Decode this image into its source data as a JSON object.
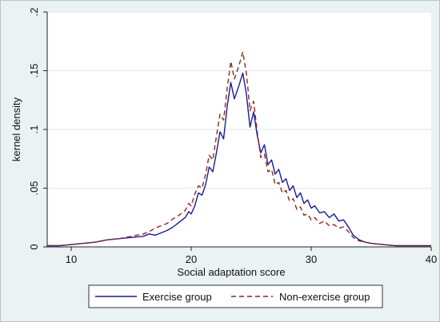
{
  "chart_data": {
    "type": "line",
    "title": "",
    "xlabel": "Social adaptation score",
    "ylabel": "kernel density",
    "xlim": [
      8,
      40
    ],
    "ylim": [
      0,
      0.2
    ],
    "x_ticks": [
      10,
      20,
      30,
      40
    ],
    "x_tick_labels": [
      "10",
      "20",
      "30",
      "40"
    ],
    "y_ticks": [
      0,
      0.05,
      0.1,
      0.15,
      0.2
    ],
    "y_tick_labels": [
      "0",
      ".05",
      ".1",
      ".15",
      ".2"
    ],
    "grid": true,
    "legend_position": "bottom",
    "colors": {
      "exercise": "#1a1a9e",
      "non_exercise": "#8b2a16",
      "grid": "#dfe7ea",
      "plot_background": "#ffffff",
      "figure_background": "#eaf2f3"
    },
    "series": [
      {
        "name": "Exercise group",
        "style": "solid",
        "points": [
          [
            8,
            0.001
          ],
          [
            9,
            0.001
          ],
          [
            10,
            0.002
          ],
          [
            11,
            0.003
          ],
          [
            12,
            0.004
          ],
          [
            13,
            0.006
          ],
          [
            14,
            0.007
          ],
          [
            15,
            0.008
          ],
          [
            16,
            0.009
          ],
          [
            16.5,
            0.011
          ],
          [
            17,
            0.01
          ],
          [
            17.5,
            0.012
          ],
          [
            18,
            0.014
          ],
          [
            18.5,
            0.017
          ],
          [
            19,
            0.021
          ],
          [
            19.5,
            0.025
          ],
          [
            19.8,
            0.03
          ],
          [
            20.0,
            0.028
          ],
          [
            20.3,
            0.035
          ],
          [
            20.6,
            0.046
          ],
          [
            20.9,
            0.044
          ],
          [
            21.2,
            0.053
          ],
          [
            21.5,
            0.068
          ],
          [
            21.8,
            0.064
          ],
          [
            22.1,
            0.08
          ],
          [
            22.4,
            0.098
          ],
          [
            22.7,
            0.092
          ],
          [
            23.0,
            0.12
          ],
          [
            23.3,
            0.14
          ],
          [
            23.6,
            0.126
          ],
          [
            24.0,
            0.138
          ],
          [
            24.3,
            0.148
          ],
          [
            24.6,
            0.13
          ],
          [
            24.9,
            0.102
          ],
          [
            25.2,
            0.115
          ],
          [
            25.5,
            0.095
          ],
          [
            25.8,
            0.08
          ],
          [
            26.1,
            0.087
          ],
          [
            26.4,
            0.07
          ],
          [
            26.7,
            0.074
          ],
          [
            27.0,
            0.062
          ],
          [
            27.3,
            0.066
          ],
          [
            27.6,
            0.055
          ],
          [
            27.9,
            0.058
          ],
          [
            28.2,
            0.048
          ],
          [
            28.5,
            0.052
          ],
          [
            28.8,
            0.042
          ],
          [
            29.1,
            0.046
          ],
          [
            29.4,
            0.037
          ],
          [
            29.7,
            0.04
          ],
          [
            30.0,
            0.033
          ],
          [
            30.3,
            0.035
          ],
          [
            30.7,
            0.029
          ],
          [
            31.1,
            0.03
          ],
          [
            31.5,
            0.025
          ],
          [
            31.9,
            0.028
          ],
          [
            32.3,
            0.022
          ],
          [
            32.7,
            0.023
          ],
          [
            33.1,
            0.017
          ],
          [
            33.5,
            0.01
          ],
          [
            34,
            0.006
          ],
          [
            34.5,
            0.004
          ],
          [
            35,
            0.003
          ],
          [
            36,
            0.002
          ],
          [
            37,
            0.001
          ],
          [
            38,
            0.001
          ],
          [
            39,
            0.001
          ],
          [
            40,
            0.001
          ]
        ]
      },
      {
        "name": "Non-exercise group",
        "style": "dashed",
        "points": [
          [
            8,
            0.001
          ],
          [
            9,
            0.001
          ],
          [
            10,
            0.002
          ],
          [
            11,
            0.003
          ],
          [
            12,
            0.004
          ],
          [
            13,
            0.006
          ],
          [
            14,
            0.007
          ],
          [
            15,
            0.009
          ],
          [
            16,
            0.011
          ],
          [
            16.5,
            0.013
          ],
          [
            17,
            0.016
          ],
          [
            17.5,
            0.018
          ],
          [
            18,
            0.02
          ],
          [
            18.5,
            0.024
          ],
          [
            19,
            0.027
          ],
          [
            19.5,
            0.031
          ],
          [
            19.8,
            0.037
          ],
          [
            20.0,
            0.035
          ],
          [
            20.3,
            0.045
          ],
          [
            20.6,
            0.052
          ],
          [
            20.9,
            0.05
          ],
          [
            21.2,
            0.062
          ],
          [
            21.5,
            0.078
          ],
          [
            21.8,
            0.074
          ],
          [
            22.1,
            0.094
          ],
          [
            22.4,
            0.113
          ],
          [
            22.7,
            0.108
          ],
          [
            23.0,
            0.135
          ],
          [
            23.3,
            0.158
          ],
          [
            23.6,
            0.143
          ],
          [
            24.0,
            0.155
          ],
          [
            24.3,
            0.166
          ],
          [
            24.6,
            0.148
          ],
          [
            24.9,
            0.116
          ],
          [
            25.2,
            0.124
          ],
          [
            25.5,
            0.098
          ],
          [
            25.8,
            0.076
          ],
          [
            26.1,
            0.079
          ],
          [
            26.4,
            0.064
          ],
          [
            26.7,
            0.066
          ],
          [
            27.0,
            0.053
          ],
          [
            27.3,
            0.055
          ],
          [
            27.6,
            0.046
          ],
          [
            27.9,
            0.048
          ],
          [
            28.2,
            0.039
          ],
          [
            28.5,
            0.041
          ],
          [
            28.8,
            0.032
          ],
          [
            29.1,
            0.034
          ],
          [
            29.4,
            0.027
          ],
          [
            29.7,
            0.028
          ],
          [
            30.0,
            0.023
          ],
          [
            30.3,
            0.025
          ],
          [
            30.7,
            0.02
          ],
          [
            31.1,
            0.022
          ],
          [
            31.5,
            0.018
          ],
          [
            31.9,
            0.019
          ],
          [
            32.3,
            0.016
          ],
          [
            32.7,
            0.017
          ],
          [
            33.1,
            0.013
          ],
          [
            33.5,
            0.008
          ],
          [
            34,
            0.005
          ],
          [
            34.5,
            0.004
          ],
          [
            35,
            0.003
          ],
          [
            36,
            0.002
          ],
          [
            37,
            0.001
          ],
          [
            38,
            0.001
          ],
          [
            39,
            0.001
          ],
          [
            40,
            0.001
          ]
        ]
      }
    ]
  }
}
